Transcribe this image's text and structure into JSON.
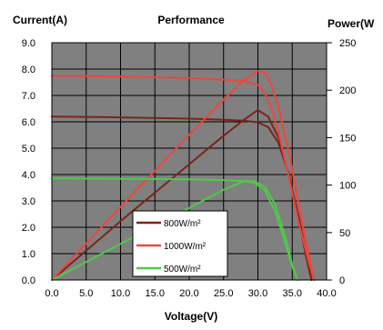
{
  "chart_data": {
    "type": "line",
    "title": "Performance",
    "ylabel": "Current(A)",
    "y2label": "Power(W",
    "xlabel": "Voltage(V)",
    "xlim": [
      0,
      40
    ],
    "ylim": [
      0,
      9
    ],
    "y2lim": [
      0,
      250
    ],
    "x_ticks": [
      "0.0",
      "5.0",
      "10.0",
      "15.0",
      "20.0",
      "25.0",
      "30.0",
      "35.0",
      "40.0"
    ],
    "y_ticks": [
      "0.0",
      "1.0",
      "2.0",
      "3.0",
      "4.0",
      "5.0",
      "6.0",
      "7.0",
      "8.0",
      "9.0"
    ],
    "y2_ticks": [
      "0",
      "50",
      "100",
      "150",
      "200",
      "250"
    ],
    "grid": true,
    "plot_background": "#808080",
    "legend_position": "bottom-center",
    "legend": [
      {
        "label": "800W/m²",
        "color": "#7b2418"
      },
      {
        "label": "1000W/m²",
        "color": "#f0453c"
      },
      {
        "label": "500W/m²",
        "color": "#4ec94a"
      }
    ],
    "series": [
      {
        "name": "800W/m²",
        "kind": "current",
        "axis": "left",
        "color": "#7b2418",
        "x": [
          0,
          10,
          20,
          25,
          28,
          30,
          31.5,
          33,
          34.5,
          36,
          37,
          37.8
        ],
        "y": [
          6.2,
          6.17,
          6.12,
          6.08,
          6.04,
          5.98,
          5.8,
          5.2,
          4.0,
          2.2,
          0.9,
          0
        ]
      },
      {
        "name": "800W/m²",
        "kind": "power",
        "axis": "right",
        "color": "#7b2418",
        "x": [
          0,
          10,
          20,
          25,
          28,
          30,
          31.5,
          33,
          34.5,
          36,
          37,
          37.8
        ],
        "y": [
          0,
          62,
          122,
          152,
          169,
          179,
          172,
          150,
          110,
          65,
          28,
          0
        ]
      },
      {
        "name": "1000W/m²",
        "kind": "current",
        "axis": "left",
        "color": "#f0453c",
        "x": [
          0,
          10,
          20,
          25,
          28,
          30,
          31,
          32,
          33,
          34.5,
          36,
          37.5,
          38.2
        ],
        "y": [
          7.75,
          7.72,
          7.66,
          7.6,
          7.55,
          7.4,
          7.1,
          6.5,
          5.6,
          3.9,
          2.1,
          0.6,
          0
        ]
      },
      {
        "name": "1000W/m²",
        "kind": "power",
        "axis": "right",
        "color": "#f0453c",
        "x": [
          0,
          10,
          20,
          25,
          28,
          30,
          31,
          32,
          33,
          34.5,
          36,
          37.5,
          38.2
        ],
        "y": [
          0,
          77,
          153,
          190,
          211,
          220,
          218,
          205,
          182,
          135,
          78,
          22,
          0
        ]
      },
      {
        "name": "500W/m²",
        "kind": "current",
        "axis": "left",
        "color": "#4ec94a",
        "x": [
          0,
          10,
          20,
          25,
          28,
          29.5,
          31,
          32.5,
          34,
          35,
          35.8
        ],
        "y": [
          3.85,
          3.84,
          3.82,
          3.79,
          3.75,
          3.68,
          3.4,
          2.6,
          1.4,
          0.5,
          0
        ]
      },
      {
        "name": "500W/m²",
        "kind": "power",
        "axis": "right",
        "color": "#4ec94a",
        "x": [
          0,
          10,
          20,
          25,
          28,
          29.5,
          31,
          32.5,
          34,
          35,
          35.8
        ],
        "y": [
          0,
          38,
          76,
          95,
          104,
          104,
          98,
          80,
          45,
          16,
          0
        ]
      }
    ]
  }
}
